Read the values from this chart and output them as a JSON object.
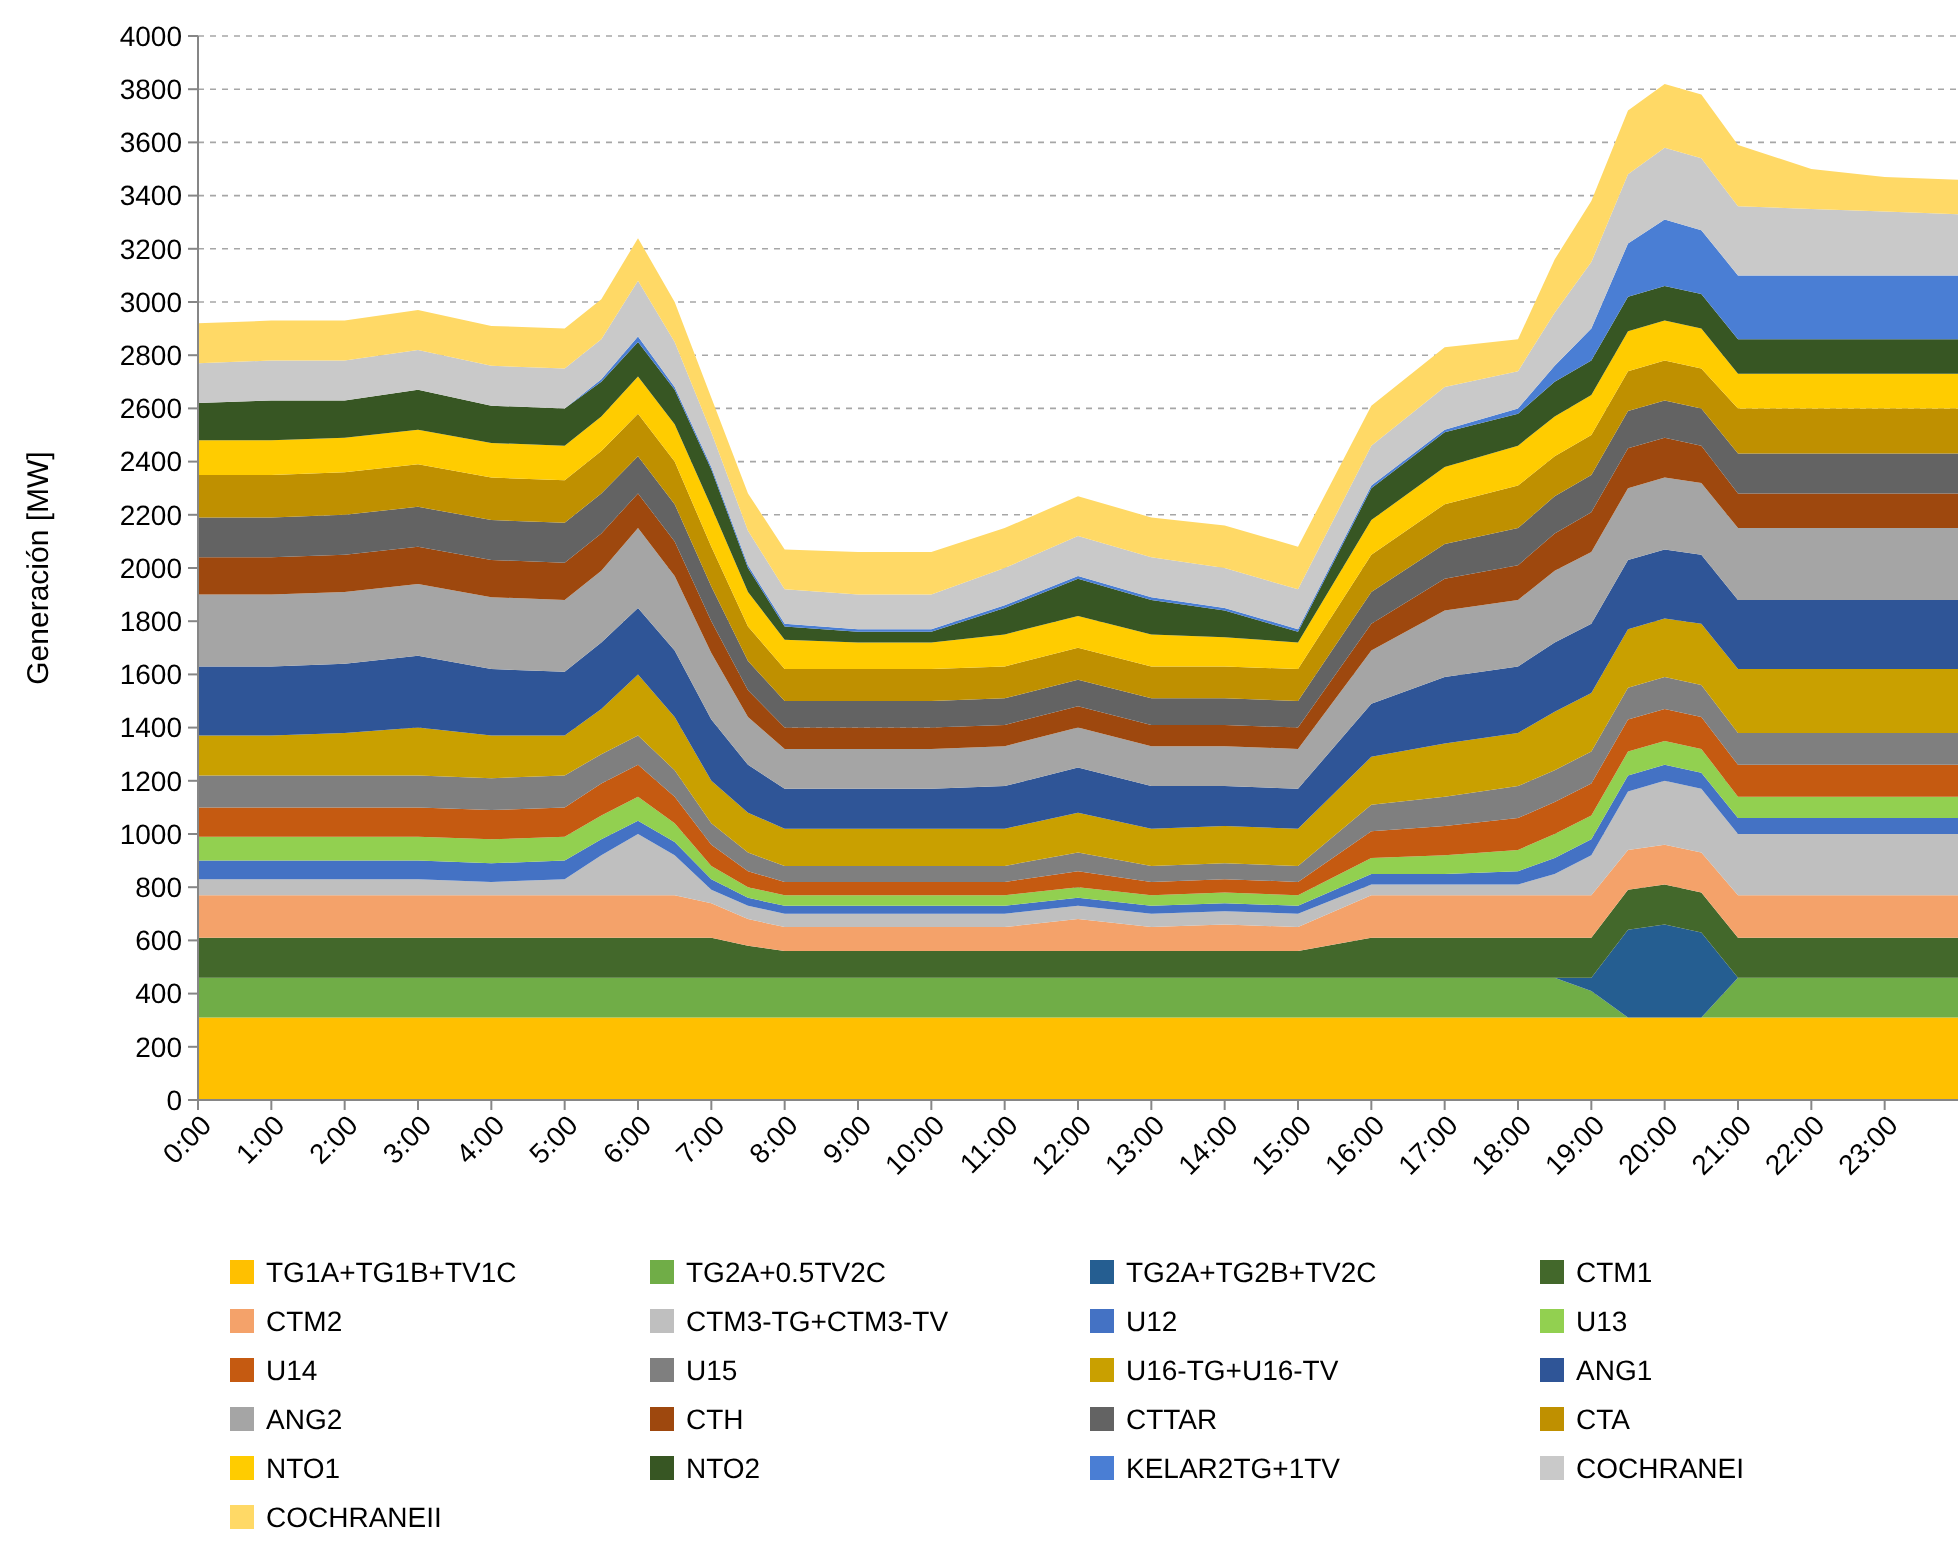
{
  "chart_data": {
    "type": "area",
    "stacked": true,
    "ylabel": "Generación [MW]",
    "grid": "y",
    "legend": "bottom",
    "x": [
      0,
      1,
      2,
      3,
      4,
      5,
      5.5,
      6,
      6.5,
      7,
      7.5,
      8,
      9,
      10,
      11,
      12,
      13,
      14,
      15,
      16,
      17,
      18,
      18.5,
      19,
      19.5,
      20,
      20.5,
      21,
      22,
      23,
      24
    ],
    "xlim": [
      0,
      24
    ],
    "xticks": [
      {
        "value": 0,
        "label": "0:00"
      },
      {
        "value": 1,
        "label": "1:00"
      },
      {
        "value": 2,
        "label": "2:00"
      },
      {
        "value": 3,
        "label": "3:00"
      },
      {
        "value": 4,
        "label": "4:00"
      },
      {
        "value": 5,
        "label": "5:00"
      },
      {
        "value": 6,
        "label": "6:00"
      },
      {
        "value": 7,
        "label": "7:00"
      },
      {
        "value": 8,
        "label": "8:00"
      },
      {
        "value": 9,
        "label": "9:00"
      },
      {
        "value": 10,
        "label": "10:00"
      },
      {
        "value": 11,
        "label": "11:00"
      },
      {
        "value": 12,
        "label": "12:00"
      },
      {
        "value": 13,
        "label": "13:00"
      },
      {
        "value": 14,
        "label": "14:00"
      },
      {
        "value": 15,
        "label": "15:00"
      },
      {
        "value": 16,
        "label": "16:00"
      },
      {
        "value": 17,
        "label": "17:00"
      },
      {
        "value": 18,
        "label": "18:00"
      },
      {
        "value": 19,
        "label": "19:00"
      },
      {
        "value": 20,
        "label": "20:00"
      },
      {
        "value": 21,
        "label": "21:00"
      },
      {
        "value": 22,
        "label": "22:00"
      },
      {
        "value": 23,
        "label": "23:00"
      }
    ],
    "ylim": [
      0,
      4000
    ],
    "yticks": [
      0,
      200,
      400,
      600,
      800,
      1000,
      1200,
      1400,
      1600,
      1800,
      2000,
      2200,
      2400,
      2600,
      2800,
      3000,
      3200,
      3400,
      3600,
      3800,
      4000
    ],
    "series": [
      {
        "name": "TG1A+TG1B+TV1C",
        "color": "#ffc000",
        "values": [
          310,
          310,
          310,
          310,
          310,
          310,
          310,
          310,
          310,
          310,
          310,
          310,
          310,
          310,
          310,
          310,
          310,
          310,
          310,
          310,
          310,
          310,
          310,
          310,
          310,
          310,
          310,
          310,
          310,
          310,
          310
        ]
      },
      {
        "name": "TG2A+0.5TV2C",
        "color": "#70ad47",
        "values": [
          150,
          150,
          150,
          150,
          150,
          150,
          150,
          150,
          150,
          150,
          150,
          150,
          150,
          150,
          150,
          150,
          150,
          150,
          150,
          150,
          150,
          150,
          150,
          100,
          0,
          0,
          0,
          150,
          150,
          150,
          150
        ]
      },
      {
        "name": "TG2A+TG2B+TV2C",
        "color": "#255e91",
        "values": [
          0,
          0,
          0,
          0,
          0,
          0,
          0,
          0,
          0,
          0,
          0,
          0,
          0,
          0,
          0,
          0,
          0,
          0,
          0,
          0,
          0,
          0,
          0,
          50,
          330,
          350,
          320,
          0,
          0,
          0,
          0
        ]
      },
      {
        "name": "CTM1",
        "color": "#43682b",
        "values": [
          150,
          150,
          150,
          150,
          150,
          150,
          150,
          150,
          150,
          150,
          120,
          100,
          100,
          100,
          100,
          100,
          100,
          100,
          100,
          150,
          150,
          150,
          150,
          150,
          150,
          150,
          150,
          150,
          150,
          150,
          150
        ]
      },
      {
        "name": "CTM2",
        "color": "#f4a26a",
        "values": [
          160,
          160,
          160,
          160,
          160,
          160,
          160,
          160,
          160,
          130,
          100,
          90,
          90,
          90,
          90,
          120,
          90,
          100,
          90,
          160,
          160,
          160,
          160,
          160,
          150,
          150,
          150,
          160,
          160,
          160,
          160
        ]
      },
      {
        "name": "CTM3-TG+CTM3-TV",
        "color": "#bfbfbf",
        "values": [
          60,
          60,
          60,
          60,
          50,
          60,
          150,
          230,
          150,
          50,
          50,
          50,
          50,
          50,
          50,
          50,
          50,
          50,
          50,
          40,
          40,
          40,
          80,
          150,
          220,
          240,
          240,
          230,
          230,
          230,
          230
        ]
      },
      {
        "name": "U12",
        "color": "#4472c4",
        "values": [
          70,
          70,
          70,
          70,
          70,
          70,
          60,
          50,
          50,
          40,
          30,
          30,
          30,
          30,
          30,
          30,
          30,
          30,
          30,
          40,
          40,
          50,
          60,
          60,
          60,
          60,
          60,
          60,
          60,
          60,
          60
        ]
      },
      {
        "name": "U13",
        "color": "#92d050",
        "values": [
          90,
          90,
          90,
          90,
          90,
          90,
          90,
          90,
          70,
          50,
          40,
          40,
          40,
          40,
          40,
          40,
          40,
          40,
          40,
          60,
          70,
          80,
          90,
          90,
          90,
          90,
          90,
          80,
          80,
          80,
          80
        ]
      },
      {
        "name": "U14",
        "color": "#c55a11",
        "values": [
          110,
          110,
          110,
          110,
          110,
          110,
          120,
          120,
          100,
          80,
          60,
          50,
          50,
          50,
          50,
          60,
          50,
          50,
          50,
          100,
          110,
          120,
          120,
          120,
          120,
          120,
          120,
          120,
          120,
          120,
          120
        ]
      },
      {
        "name": "U15",
        "color": "#7f7f7f",
        "values": [
          120,
          120,
          120,
          120,
          120,
          120,
          110,
          110,
          100,
          80,
          70,
          60,
          60,
          60,
          60,
          70,
          60,
          60,
          60,
          100,
          110,
          120,
          120,
          120,
          120,
          120,
          120,
          120,
          120,
          120,
          120
        ]
      },
      {
        "name": "U16-TG+U16-TV",
        "color": "#c9a000",
        "values": [
          150,
          150,
          160,
          180,
          160,
          150,
          170,
          230,
          200,
          160,
          150,
          140,
          140,
          140,
          140,
          150,
          140,
          140,
          140,
          180,
          200,
          200,
          220,
          220,
          220,
          220,
          230,
          240,
          240,
          240,
          240
        ]
      },
      {
        "name": "ANG1",
        "color": "#2f5597",
        "values": [
          260,
          260,
          260,
          270,
          250,
          240,
          250,
          250,
          250,
          230,
          180,
          150,
          150,
          150,
          160,
          170,
          160,
          150,
          150,
          200,
          250,
          250,
          260,
          260,
          260,
          260,
          260,
          260,
          260,
          260,
          260
        ]
      },
      {
        "name": "ANG2",
        "color": "#a5a5a5",
        "values": [
          270,
          270,
          270,
          270,
          270,
          270,
          270,
          300,
          280,
          250,
          180,
          150,
          150,
          150,
          150,
          150,
          150,
          150,
          150,
          200,
          250,
          250,
          270,
          270,
          270,
          270,
          270,
          270,
          270,
          270,
          270
        ]
      },
      {
        "name": "CTH",
        "color": "#9e480e",
        "values": [
          140,
          140,
          140,
          140,
          140,
          140,
          140,
          130,
          130,
          120,
          100,
          80,
          80,
          80,
          80,
          80,
          80,
          80,
          80,
          100,
          120,
          130,
          140,
          150,
          150,
          150,
          140,
          130,
          130,
          130,
          130
        ]
      },
      {
        "name": "CTTAR",
        "color": "#636363",
        "values": [
          150,
          150,
          150,
          150,
          150,
          150,
          150,
          140,
          140,
          130,
          110,
          100,
          100,
          100,
          100,
          100,
          100,
          100,
          100,
          120,
          130,
          140,
          140,
          140,
          140,
          140,
          140,
          150,
          150,
          150,
          150
        ]
      },
      {
        "name": "CTA",
        "color": "#bf9000",
        "values": [
          160,
          160,
          160,
          160,
          160,
          160,
          160,
          160,
          160,
          150,
          130,
          120,
          120,
          120,
          120,
          120,
          120,
          120,
          120,
          140,
          150,
          160,
          150,
          150,
          150,
          150,
          150,
          170,
          170,
          170,
          170
        ]
      },
      {
        "name": "NTO1",
        "color": "#ffcc00",
        "values": [
          130,
          130,
          130,
          130,
          130,
          130,
          130,
          140,
          140,
          150,
          130,
          110,
          100,
          100,
          120,
          120,
          120,
          110,
          100,
          130,
          140,
          150,
          150,
          150,
          150,
          150,
          150,
          130,
          130,
          130,
          130
        ]
      },
      {
        "name": "NTO2",
        "color": "#375623",
        "values": [
          140,
          150,
          140,
          150,
          140,
          140,
          130,
          130,
          130,
          140,
          90,
          50,
          40,
          40,
          100,
          140,
          130,
          100,
          40,
          120,
          130,
          120,
          130,
          130,
          130,
          130,
          130,
          130,
          130,
          130,
          130
        ]
      },
      {
        "name": "KELAR2TG+1TV",
        "color": "#4a7ed4",
        "values": [
          0,
          0,
          0,
          0,
          0,
          0,
          10,
          20,
          10,
          10,
          10,
          10,
          10,
          10,
          10,
          10,
          10,
          10,
          10,
          10,
          10,
          20,
          60,
          120,
          200,
          250,
          240,
          240,
          240,
          240,
          240
        ]
      },
      {
        "name": "COCHRANEI",
        "color": "#c9c9c9",
        "values": [
          150,
          150,
          150,
          150,
          150,
          150,
          150,
          210,
          170,
          130,
          130,
          130,
          130,
          130,
          140,
          150,
          150,
          150,
          150,
          150,
          160,
          140,
          200,
          250,
          260,
          270,
          270,
          260,
          250,
          240,
          230
        ]
      },
      {
        "name": "COCHRANEII",
        "color": "#ffd966",
        "values": [
          150,
          150,
          150,
          150,
          150,
          150,
          150,
          160,
          150,
          130,
          140,
          150,
          160,
          160,
          150,
          150,
          150,
          160,
          160,
          150,
          150,
          120,
          200,
          230,
          240,
          240,
          240,
          230,
          150,
          130,
          130
        ]
      }
    ]
  }
}
